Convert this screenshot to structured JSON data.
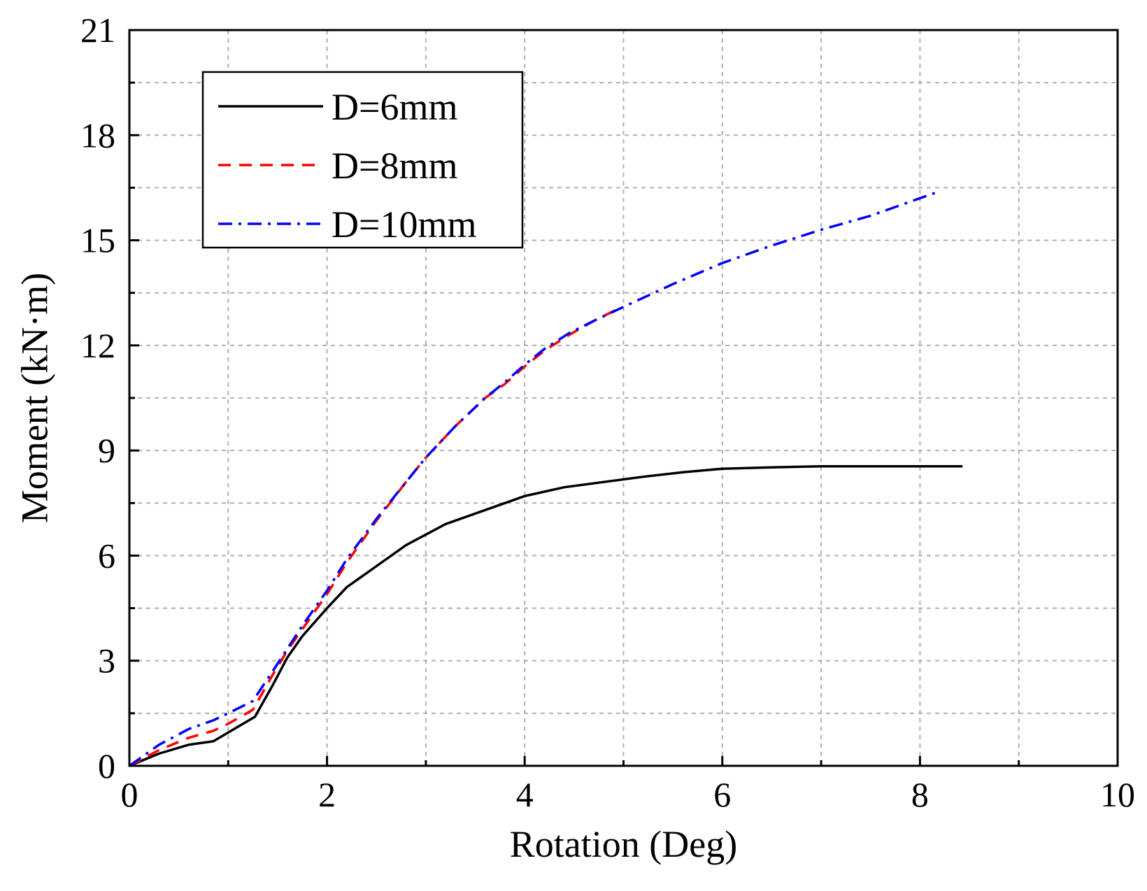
{
  "chart_data": {
    "type": "line",
    "xlabel": "Rotation (Deg)",
    "ylabel": "Moment (kN·m)",
    "xlim": [
      0,
      10
    ],
    "ylim": [
      0,
      21
    ],
    "xticks": [
      0,
      2,
      4,
      6,
      8,
      10
    ],
    "yticks": [
      0,
      3,
      6,
      9,
      12,
      15,
      18,
      21
    ],
    "x_minor_step": 1,
    "y_minor_step": 1.5,
    "grid": true,
    "legend_position": "top-left",
    "series": [
      {
        "name": "D=6mm",
        "color": "#000000",
        "style": "solid",
        "x": [
          0,
          0.3,
          0.6,
          0.85,
          1.0,
          1.27,
          1.45,
          1.6,
          1.75,
          2.0,
          2.2,
          2.45,
          2.8,
          3.2,
          3.6,
          4.0,
          4.4,
          4.8,
          5.2,
          5.6,
          6.0,
          6.5,
          7.0,
          7.5,
          8.0,
          8.43
        ],
        "y": [
          0,
          0.35,
          0.6,
          0.7,
          0.95,
          1.4,
          2.3,
          3.1,
          3.7,
          4.5,
          5.1,
          5.6,
          6.3,
          6.9,
          7.3,
          7.7,
          7.95,
          8.1,
          8.25,
          8.38,
          8.48,
          8.52,
          8.55,
          8.55,
          8.55,
          8.55
        ]
      },
      {
        "name": "D=8mm",
        "color": "#ff0000",
        "style": "dashed",
        "x": [
          0,
          0.3,
          0.6,
          0.85,
          1.0,
          1.25,
          1.45,
          1.6,
          1.75,
          2.0,
          2.2,
          2.5,
          2.8,
          3.0,
          3.3,
          3.6,
          3.8,
          4.0,
          4.2,
          4.45,
          4.7,
          4.95
        ],
        "y": [
          0,
          0.45,
          0.8,
          1.0,
          1.2,
          1.6,
          2.6,
          3.3,
          3.9,
          4.9,
          5.8,
          7.0,
          8.1,
          8.8,
          9.7,
          10.5,
          10.9,
          11.4,
          11.85,
          12.3,
          12.7,
          13.05
        ]
      },
      {
        "name": "D=10mm",
        "color": "#0000ff",
        "style": "dashdot",
        "x": [
          0,
          0.3,
          0.6,
          0.85,
          1.0,
          1.25,
          1.45,
          1.6,
          1.75,
          2.0,
          2.2,
          2.5,
          2.8,
          3.0,
          3.3,
          3.6,
          3.8,
          4.0,
          4.2,
          4.45,
          4.7,
          5.0,
          5.5,
          6.0,
          6.5,
          7.0,
          7.5,
          8.15
        ],
        "y": [
          0,
          0.6,
          1.05,
          1.3,
          1.5,
          1.85,
          2.7,
          3.35,
          4.0,
          5.0,
          5.9,
          7.05,
          8.1,
          8.8,
          9.7,
          10.5,
          10.95,
          11.45,
          11.9,
          12.35,
          12.7,
          13.1,
          13.75,
          14.35,
          14.85,
          15.3,
          15.7,
          16.35
        ]
      }
    ]
  }
}
